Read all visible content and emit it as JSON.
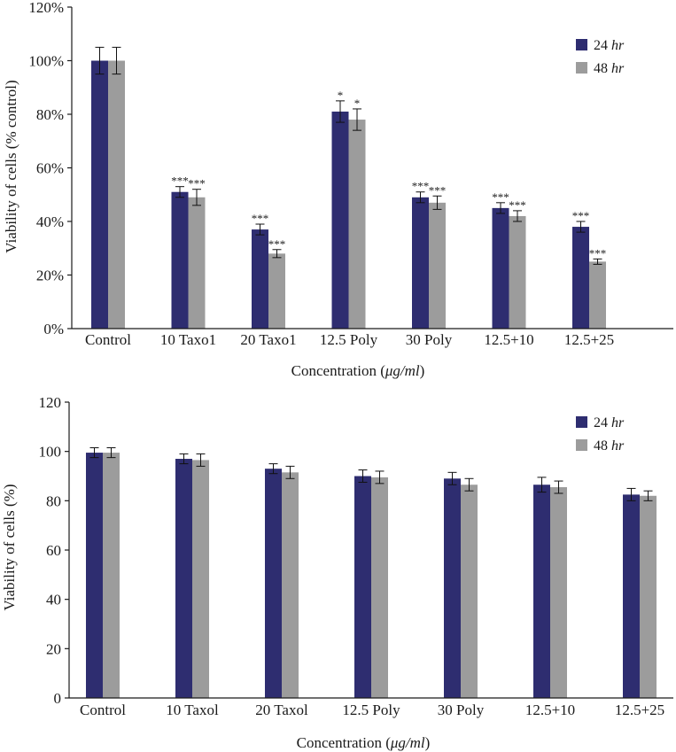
{
  "colors": {
    "series_24": "#2e2d70",
    "series_48": "#9c9c9c",
    "axis": "#1a1a1a"
  },
  "chart_data": [
    {
      "type": "bar",
      "xlabel_prefix": "Concentration (",
      "xlabel_unit": "μg/ml",
      "xlabel_suffix": ")",
      "ylabel": "Viability of cells (% control)",
      "ylim": [
        0,
        120
      ],
      "yticks": [
        "0%",
        "20%",
        "40%",
        "60%",
        "80%",
        "100%",
        "120%"
      ],
      "categories": [
        "Control",
        "10 Taxo1",
        "20 Taxo1",
        "12.5 Poly",
        "30 Poly",
        "12.5+10",
        "12.5+25"
      ],
      "legend": {
        "placement": "top-right",
        "entries": [
          {
            "number": "24",
            "unit": "hr"
          },
          {
            "number": "48",
            "unit": "hr"
          }
        ]
      },
      "grid": false,
      "series": [
        {
          "values": [
            100,
            51,
            37,
            81,
            49,
            45,
            38
          ],
          "errors": [
            5,
            2,
            2,
            4,
            2,
            2,
            2
          ],
          "annotations": [
            "",
            "***",
            "***",
            "*",
            "***",
            "***",
            "***"
          ]
        },
        {
          "values": [
            100,
            49,
            28,
            78,
            47,
            42,
            25
          ],
          "errors": [
            5,
            3,
            1.5,
            4,
            2.5,
            2,
            1
          ],
          "annotations": [
            "",
            "***",
            "***",
            "*",
            "***",
            "***",
            "***"
          ]
        }
      ]
    },
    {
      "type": "bar",
      "xlabel_prefix": "Concentration (",
      "xlabel_unit": "μg/ml",
      "xlabel_suffix": ")",
      "ylabel": "Viability of cells (%)",
      "ylim": [
        0,
        120
      ],
      "yticks": [
        "0",
        "20",
        "40",
        "60",
        "80",
        "100",
        "120"
      ],
      "categories": [
        "Control",
        "10 Taxol",
        "20 Taxol",
        "12.5 Poly",
        "30 Poly",
        "12.5+10",
        "12.5+25"
      ],
      "legend": {
        "placement": "top-right",
        "entries": [
          {
            "number": "24",
            "unit": "hr"
          },
          {
            "number": "48",
            "unit": "hr"
          }
        ]
      },
      "grid": false,
      "series": [
        {
          "values": [
            99.5,
            97,
            93,
            90,
            89,
            86.5,
            82.5
          ],
          "errors": [
            2,
            2,
            2,
            2.5,
            2.5,
            3,
            2.5
          ],
          "annotations": [
            "",
            "",
            "",
            "",
            "",
            "",
            ""
          ]
        },
        {
          "values": [
            99.5,
            96.5,
            91.5,
            89.5,
            86.5,
            85.5,
            82
          ],
          "errors": [
            2,
            2.5,
            2.5,
            2.5,
            2.5,
            2.5,
            2
          ],
          "annotations": [
            "",
            "",
            "",
            "",
            "",
            "",
            ""
          ]
        }
      ]
    }
  ]
}
